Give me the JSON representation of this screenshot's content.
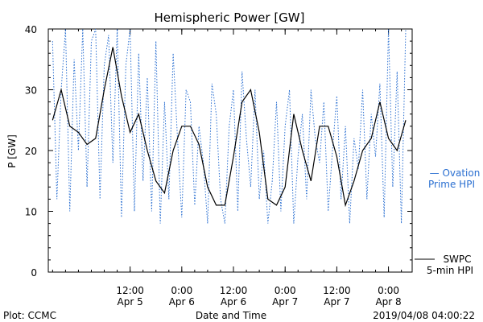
{
  "chart_data": {
    "type": "line",
    "title": "Hemispheric Power [GW]",
    "xlabel": "Date and Time",
    "ylabel": "P [GW]",
    "ylim": [
      0,
      40
    ],
    "yticks": [
      0,
      10,
      20,
      30,
      40
    ],
    "xlim_hours_note": "Apr 4 ~18:00 to Apr 8 ~05:00",
    "xticks": [
      {
        "time": "12:00",
        "date": "Apr 5"
      },
      {
        "time": "0:00",
        "date": "Apr 6"
      },
      {
        "time": "12:00",
        "date": "Apr 6"
      },
      {
        "time": "0:00",
        "date": "Apr 7"
      },
      {
        "time": "12:00",
        "date": "Apr 7"
      },
      {
        "time": "0:00",
        "date": "Apr 8"
      }
    ],
    "grid": false,
    "legend_placement": "right",
    "series": [
      {
        "name": "SWPC 5-min HPI",
        "color": "#000000",
        "style": "solid",
        "x": [
          "2019-04-04 18:00",
          "2019-04-04 20:00",
          "2019-04-04 22:00",
          "2019-04-05 00:00",
          "2019-04-05 02:00",
          "2019-04-05 04:00",
          "2019-04-05 06:00",
          "2019-04-05 08:00",
          "2019-04-05 10:00",
          "2019-04-05 12:00",
          "2019-04-05 14:00",
          "2019-04-05 16:00",
          "2019-04-05 18:00",
          "2019-04-05 20:00",
          "2019-04-05 22:00",
          "2019-04-06 00:00",
          "2019-04-06 02:00",
          "2019-04-06 04:00",
          "2019-04-06 06:00",
          "2019-04-06 08:00",
          "2019-04-06 10:00",
          "2019-04-06 12:00",
          "2019-04-06 14:00",
          "2019-04-06 16:00",
          "2019-04-06 18:00",
          "2019-04-06 20:00",
          "2019-04-06 22:00",
          "2019-04-07 00:00",
          "2019-04-07 02:00",
          "2019-04-07 04:00",
          "2019-04-07 06:00",
          "2019-04-07 08:00",
          "2019-04-07 10:00",
          "2019-04-07 12:00",
          "2019-04-07 14:00",
          "2019-04-07 16:00",
          "2019-04-07 18:00",
          "2019-04-07 20:00",
          "2019-04-07 22:00",
          "2019-04-08 00:00",
          "2019-04-08 02:00",
          "2019-04-08 04:00"
        ],
        "y": [
          25,
          30,
          24,
          23,
          21,
          22,
          30,
          37,
          29,
          23,
          26,
          20,
          15,
          13,
          20,
          24,
          24,
          21,
          14,
          11,
          11,
          19,
          28,
          30,
          23,
          12,
          11,
          14,
          26,
          20,
          15,
          24,
          24,
          19,
          11,
          15,
          20,
          22,
          28,
          22,
          20,
          25
        ]
      },
      {
        "name": "Ovation Prime HPI",
        "color": "#2a6fd1",
        "style": "dotted",
        "x": [
          "2019-04-04 18:00",
          "2019-04-04 19:00",
          "2019-04-04 20:00",
          "2019-04-04 21:00",
          "2019-04-04 22:00",
          "2019-04-04 23:00",
          "2019-04-05 00:00",
          "2019-04-05 01:00",
          "2019-04-05 02:00",
          "2019-04-05 03:00",
          "2019-04-05 04:00",
          "2019-04-05 05:00",
          "2019-04-05 06:00",
          "2019-04-05 07:00",
          "2019-04-05 08:00",
          "2019-04-05 09:00",
          "2019-04-05 10:00",
          "2019-04-05 11:00",
          "2019-04-05 12:00",
          "2019-04-05 13:00",
          "2019-04-05 14:00",
          "2019-04-05 15:00",
          "2019-04-05 16:00",
          "2019-04-05 17:00",
          "2019-04-05 18:00",
          "2019-04-05 19:00",
          "2019-04-05 20:00",
          "2019-04-05 21:00",
          "2019-04-05 22:00",
          "2019-04-05 23:00",
          "2019-04-06 00:00",
          "2019-04-06 01:00",
          "2019-04-06 02:00",
          "2019-04-06 03:00",
          "2019-04-06 04:00",
          "2019-04-06 05:00",
          "2019-04-06 06:00",
          "2019-04-06 07:00",
          "2019-04-06 08:00",
          "2019-04-06 09:00",
          "2019-04-06 10:00",
          "2019-04-06 11:00",
          "2019-04-06 12:00",
          "2019-04-06 13:00",
          "2019-04-06 14:00",
          "2019-04-06 15:00",
          "2019-04-06 16:00",
          "2019-04-06 17:00",
          "2019-04-06 18:00",
          "2019-04-06 19:00",
          "2019-04-06 20:00",
          "2019-04-06 21:00",
          "2019-04-06 22:00",
          "2019-04-06 23:00",
          "2019-04-07 00:00",
          "2019-04-07 01:00",
          "2019-04-07 02:00",
          "2019-04-07 03:00",
          "2019-04-07 04:00",
          "2019-04-07 05:00",
          "2019-04-07 06:00",
          "2019-04-07 07:00",
          "2019-04-07 08:00",
          "2019-04-07 09:00",
          "2019-04-07 10:00",
          "2019-04-07 11:00",
          "2019-04-07 12:00",
          "2019-04-07 13:00",
          "2019-04-07 14:00",
          "2019-04-07 15:00",
          "2019-04-07 16:00",
          "2019-04-07 17:00",
          "2019-04-07 18:00",
          "2019-04-07 19:00",
          "2019-04-07 20:00",
          "2019-04-07 21:00",
          "2019-04-07 22:00",
          "2019-04-07 23:00",
          "2019-04-08 00:00",
          "2019-04-08 01:00",
          "2019-04-08 02:00",
          "2019-04-08 03:00",
          "2019-04-08 04:00"
        ],
        "y": [
          38,
          12,
          30,
          40,
          10,
          35,
          20,
          40,
          14,
          38,
          40,
          12,
          34,
          39,
          18,
          40,
          9,
          34,
          40,
          10,
          36,
          15,
          32,
          10,
          38,
          8,
          28,
          12,
          36,
          22,
          9,
          30,
          28,
          11,
          24,
          18,
          8,
          31,
          26,
          12,
          8,
          24,
          30,
          10,
          33,
          22,
          14,
          30,
          12,
          20,
          8,
          15,
          28,
          10,
          24,
          30,
          8,
          19,
          26,
          12,
          30,
          22,
          18,
          28,
          10,
          20,
          29,
          12,
          24,
          8,
          22,
          17,
          30,
          12,
          26,
          19,
          31,
          9,
          40,
          14,
          33,
          8,
          40
        ]
      }
    ]
  },
  "legend": {
    "ovation_line1": "— Ovation",
    "ovation_line2": "Prime HPI",
    "swpc_line1": "SWPC",
    "swpc_line2": "5-min HPI"
  },
  "footer": {
    "left": "Plot: CCMC",
    "center": "Date and Time",
    "right": "2019/04/08 04:00:22"
  }
}
